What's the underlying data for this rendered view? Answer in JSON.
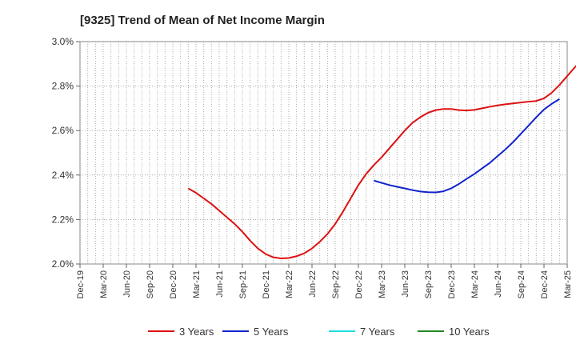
{
  "chart_data": {
    "type": "line",
    "title": "[9325]  Trend of Mean of Net Income Margin",
    "xlabel": "",
    "ylabel": "",
    "x_ticks": [
      "Dec-19",
      "Mar-20",
      "Jun-20",
      "Sep-20",
      "Dec-20",
      "Mar-21",
      "Jun-21",
      "Sep-21",
      "Dec-21",
      "Mar-22",
      "Jun-22",
      "Sep-22",
      "Dec-22",
      "Mar-23",
      "Jun-23",
      "Sep-23",
      "Dec-23",
      "Mar-24",
      "Jun-24",
      "Sep-24",
      "Dec-24",
      "Mar-25"
    ],
    "y_ticks": [
      "2.0%",
      "2.2%",
      "2.4%",
      "2.6%",
      "2.8%",
      "3.0%"
    ],
    "ylim": [
      2.0,
      3.0
    ],
    "y_unit": "%",
    "grid": true,
    "legend_position": "bottom",
    "series": [
      {
        "name": "3 Years",
        "color": "#dd1111",
        "points": [
          [
            "Feb-21",
            2.34
          ],
          [
            "Mar-21",
            2.32
          ],
          [
            "Apr-21",
            2.295
          ],
          [
            "May-21",
            2.27
          ],
          [
            "Jun-21",
            2.24
          ],
          [
            "Jul-21",
            2.21
          ],
          [
            "Aug-21",
            2.18
          ],
          [
            "Sep-21",
            2.145
          ],
          [
            "Oct-21",
            2.105
          ],
          [
            "Nov-21",
            2.07
          ],
          [
            "Dec-21",
            2.045
          ],
          [
            "Jan-22",
            2.03
          ],
          [
            "Feb-22",
            2.025
          ],
          [
            "Mar-22",
            2.027
          ],
          [
            "Apr-22",
            2.035
          ],
          [
            "May-22",
            2.048
          ],
          [
            "Jun-22",
            2.07
          ],
          [
            "Jul-22",
            2.1
          ],
          [
            "Aug-22",
            2.135
          ],
          [
            "Sep-22",
            2.18
          ],
          [
            "Oct-22",
            2.235
          ],
          [
            "Nov-22",
            2.295
          ],
          [
            "Dec-22",
            2.355
          ],
          [
            "Jan-23",
            2.405
          ],
          [
            "Feb-23",
            2.445
          ],
          [
            "Mar-23",
            2.48
          ],
          [
            "Apr-23",
            2.52
          ],
          [
            "May-23",
            2.56
          ],
          [
            "Jun-23",
            2.6
          ],
          [
            "Jul-23",
            2.635
          ],
          [
            "Aug-23",
            2.66
          ],
          [
            "Sep-23",
            2.68
          ],
          [
            "Oct-23",
            2.692
          ],
          [
            "Nov-23",
            2.697
          ],
          [
            "Dec-23",
            2.697
          ],
          [
            "Jan-24",
            2.692
          ],
          [
            "Feb-24",
            2.69
          ],
          [
            "Mar-24",
            2.693
          ],
          [
            "Apr-24",
            2.7
          ],
          [
            "May-24",
            2.707
          ],
          [
            "Jun-24",
            2.713
          ],
          [
            "Jul-24",
            2.718
          ],
          [
            "Aug-24",
            2.722
          ],
          [
            "Sep-24",
            2.726
          ],
          [
            "Oct-24",
            2.73
          ],
          [
            "Nov-24",
            2.733
          ],
          [
            "Dec-24",
            2.745
          ],
          [
            "Jan-25",
            2.77
          ],
          [
            "Feb-25",
            2.805
          ],
          [
            "Mar-25",
            2.845
          ],
          [
            "Apr-25",
            2.885
          ],
          [
            "May-25",
            2.92
          ]
        ]
      },
      {
        "name": "5 Years",
        "color": "#1122cc",
        "points": [
          [
            "Feb-23",
            2.375
          ],
          [
            "Mar-23",
            2.365
          ],
          [
            "Apr-23",
            2.355
          ],
          [
            "May-23",
            2.347
          ],
          [
            "Jun-23",
            2.34
          ],
          [
            "Jul-23",
            2.332
          ],
          [
            "Aug-23",
            2.326
          ],
          [
            "Sep-23",
            2.323
          ],
          [
            "Oct-23",
            2.322
          ],
          [
            "Nov-23",
            2.327
          ],
          [
            "Dec-23",
            2.34
          ],
          [
            "Jan-24",
            2.36
          ],
          [
            "Feb-24",
            2.383
          ],
          [
            "Mar-24",
            2.405
          ],
          [
            "Apr-24",
            2.43
          ],
          [
            "May-24",
            2.455
          ],
          [
            "Jun-24",
            2.485
          ],
          [
            "Jul-24",
            2.515
          ],
          [
            "Aug-24",
            2.548
          ],
          [
            "Sep-24",
            2.585
          ],
          [
            "Oct-24",
            2.622
          ],
          [
            "Nov-24",
            2.66
          ],
          [
            "Dec-24",
            2.695
          ],
          [
            "Jan-25",
            2.72
          ],
          [
            "Feb-25",
            2.742
          ]
        ]
      },
      {
        "name": "7 Years",
        "color": "#22dddd",
        "points": []
      },
      {
        "name": "10 Years",
        "color": "#228822",
        "points": []
      }
    ]
  }
}
